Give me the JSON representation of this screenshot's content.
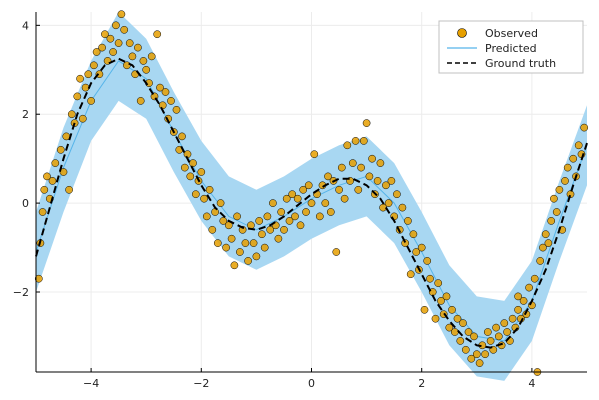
{
  "chart_data": {
    "type": "scatter",
    "title": "",
    "xlabel": "",
    "ylabel": "",
    "xlim": [
      -5,
      5
    ],
    "ylim": [
      -3.8,
      4.3
    ],
    "x_ticks": [
      -4,
      -2,
      0,
      2,
      4
    ],
    "x_tick_labels": [
      "−4",
      "−2",
      "0",
      "2",
      "4"
    ],
    "y_ticks": [
      -2,
      0,
      2,
      4
    ],
    "y_tick_labels": [
      "−2",
      "0",
      "2",
      "4"
    ],
    "grid": true,
    "legend": {
      "placement": "top-right",
      "entries": [
        "Observed",
        "Predicted",
        "Ground truth"
      ]
    },
    "colors": {
      "observed": "#e69f00",
      "observed_stroke": "#000000",
      "predicted": "#56b4e9",
      "band": "#a8d7f2",
      "ground_truth": "#000000",
      "grid": "#ececec",
      "axis": "#000000"
    },
    "series": [
      {
        "name": "Observed",
        "kind": "scatter",
        "points": [
          [
            -4.95,
            -1.7
          ],
          [
            -4.92,
            -0.9
          ],
          [
            -4.88,
            -0.2
          ],
          [
            -4.85,
            0.3
          ],
          [
            -4.8,
            0.6
          ],
          [
            -4.75,
            0.1
          ],
          [
            -4.7,
            0.5
          ],
          [
            -4.65,
            0.9
          ],
          [
            -4.55,
            1.2
          ],
          [
            -4.5,
            0.7
          ],
          [
            -4.45,
            1.5
          ],
          [
            -4.4,
            0.3
          ],
          [
            -4.35,
            2.0
          ],
          [
            -4.3,
            1.8
          ],
          [
            -4.25,
            2.4
          ],
          [
            -4.2,
            2.8
          ],
          [
            -4.15,
            1.9
          ],
          [
            -4.1,
            2.6
          ],
          [
            -4.05,
            2.9
          ],
          [
            -4.0,
            2.3
          ],
          [
            -3.95,
            3.1
          ],
          [
            -3.9,
            3.4
          ],
          [
            -3.85,
            2.9
          ],
          [
            -3.8,
            3.5
          ],
          [
            -3.75,
            3.8
          ],
          [
            -3.7,
            3.2
          ],
          [
            -3.65,
            3.7
          ],
          [
            -3.6,
            3.4
          ],
          [
            -3.55,
            4.0
          ],
          [
            -3.5,
            3.6
          ],
          [
            -3.45,
            4.25
          ],
          [
            -3.4,
            3.9
          ],
          [
            -3.35,
            3.1
          ],
          [
            -3.3,
            3.6
          ],
          [
            -3.25,
            3.3
          ],
          [
            -3.2,
            2.9
          ],
          [
            -3.15,
            3.5
          ],
          [
            -3.1,
            2.3
          ],
          [
            -3.05,
            3.2
          ],
          [
            -3.0,
            3.0
          ],
          [
            -2.95,
            2.7
          ],
          [
            -2.9,
            3.3
          ],
          [
            -2.85,
            2.4
          ],
          [
            -2.8,
            3.8
          ],
          [
            -2.75,
            2.6
          ],
          [
            -2.7,
            2.2
          ],
          [
            -2.65,
            2.5
          ],
          [
            -2.6,
            1.9
          ],
          [
            -2.55,
            2.3
          ],
          [
            -2.5,
            1.6
          ],
          [
            -2.45,
            2.1
          ],
          [
            -2.4,
            1.2
          ],
          [
            -2.35,
            1.5
          ],
          [
            -2.3,
            0.8
          ],
          [
            -2.25,
            1.1
          ],
          [
            -2.2,
            0.6
          ],
          [
            -2.15,
            0.9
          ],
          [
            -2.1,
            0.2
          ],
          [
            -2.05,
            0.5
          ],
          [
            -2.0,
            0.7
          ],
          [
            -1.95,
            0.1
          ],
          [
            -1.9,
            -0.3
          ],
          [
            -1.85,
            0.3
          ],
          [
            -1.8,
            -0.6
          ],
          [
            -1.75,
            -0.2
          ],
          [
            -1.7,
            -0.9
          ],
          [
            -1.65,
            0.0
          ],
          [
            -1.6,
            -0.4
          ],
          [
            -1.55,
            -1.0
          ],
          [
            -1.5,
            -0.5
          ],
          [
            -1.45,
            -0.8
          ],
          [
            -1.4,
            -1.4
          ],
          [
            -1.35,
            -0.3
          ],
          [
            -1.3,
            -1.1
          ],
          [
            -1.25,
            -0.6
          ],
          [
            -1.2,
            -0.9
          ],
          [
            -1.15,
            -1.3
          ],
          [
            -1.1,
            -0.5
          ],
          [
            -1.05,
            -0.9
          ],
          [
            -1.0,
            -1.2
          ],
          [
            -0.95,
            -0.4
          ],
          [
            -0.9,
            -0.7
          ],
          [
            -0.85,
            -1.0
          ],
          [
            -0.8,
            -0.3
          ],
          [
            -0.75,
            -0.6
          ],
          [
            -0.7,
            0.0
          ],
          [
            -0.65,
            -0.5
          ],
          [
            -0.6,
            -0.8
          ],
          [
            -0.55,
            -0.2
          ],
          [
            -0.5,
            -0.6
          ],
          [
            -0.45,
            0.1
          ],
          [
            -0.4,
            -0.4
          ],
          [
            -0.35,
            0.2
          ],
          [
            -0.3,
            -0.3
          ],
          [
            -0.25,
            0.1
          ],
          [
            -0.2,
            -0.5
          ],
          [
            -0.15,
            0.3
          ],
          [
            -0.1,
            -0.2
          ],
          [
            -0.05,
            0.4
          ],
          [
            0.0,
            0.0
          ],
          [
            0.05,
            1.1
          ],
          [
            0.1,
            0.2
          ],
          [
            0.15,
            -0.3
          ],
          [
            0.2,
            0.4
          ],
          [
            0.25,
            0.0
          ],
          [
            0.3,
            0.6
          ],
          [
            0.35,
            -0.2
          ],
          [
            0.4,
            0.5
          ],
          [
            0.45,
            -1.1
          ],
          [
            0.5,
            0.3
          ],
          [
            0.55,
            0.8
          ],
          [
            0.6,
            0.1
          ],
          [
            0.65,
            1.3
          ],
          [
            0.7,
            0.5
          ],
          [
            0.75,
            0.9
          ],
          [
            0.8,
            1.4
          ],
          [
            0.85,
            0.3
          ],
          [
            0.9,
            0.8
          ],
          [
            0.95,
            1.4
          ],
          [
            1.0,
            1.8
          ],
          [
            1.05,
            0.6
          ],
          [
            1.1,
            1.0
          ],
          [
            1.15,
            0.2
          ],
          [
            1.2,
            0.5
          ],
          [
            1.25,
            0.9
          ],
          [
            1.3,
            -0.1
          ],
          [
            1.35,
            0.4
          ],
          [
            1.4,
            0.0
          ],
          [
            1.45,
            0.5
          ],
          [
            1.5,
            -0.3
          ],
          [
            1.55,
            0.2
          ],
          [
            1.6,
            -0.6
          ],
          [
            1.65,
            -0.1
          ],
          [
            1.7,
            -0.9
          ],
          [
            1.75,
            -0.4
          ],
          [
            1.8,
            -1.6
          ],
          [
            1.85,
            -0.7
          ],
          [
            1.9,
            -1.1
          ],
          [
            1.95,
            -1.5
          ],
          [
            2.0,
            -1.0
          ],
          [
            2.05,
            -2.4
          ],
          [
            2.1,
            -1.3
          ],
          [
            2.15,
            -1.7
          ],
          [
            2.2,
            -2.0
          ],
          [
            2.25,
            -2.6
          ],
          [
            2.3,
            -1.8
          ],
          [
            2.35,
            -2.2
          ],
          [
            2.4,
            -2.5
          ],
          [
            2.45,
            -2.1
          ],
          [
            2.5,
            -2.8
          ],
          [
            2.55,
            -2.4
          ],
          [
            2.6,
            -2.9
          ],
          [
            2.65,
            -2.6
          ],
          [
            2.7,
            -3.1
          ],
          [
            2.75,
            -2.7
          ],
          [
            2.8,
            -3.3
          ],
          [
            2.85,
            -2.9
          ],
          [
            2.9,
            -3.5
          ],
          [
            2.95,
            -3.0
          ],
          [
            3.0,
            -3.4
          ],
          [
            3.05,
            -3.6
          ],
          [
            3.1,
            -3.2
          ],
          [
            3.15,
            -3.4
          ],
          [
            3.2,
            -2.9
          ],
          [
            3.25,
            -3.1
          ],
          [
            3.3,
            -3.3
          ],
          [
            3.35,
            -2.8
          ],
          [
            3.4,
            -3.0
          ],
          [
            3.45,
            -3.2
          ],
          [
            3.5,
            -2.7
          ],
          [
            3.55,
            -2.9
          ],
          [
            3.6,
            -3.1
          ],
          [
            3.65,
            -2.6
          ],
          [
            3.7,
            -2.8
          ],
          [
            3.75,
            -2.4
          ],
          [
            3.8,
            -2.6
          ],
          [
            3.85,
            -2.2
          ],
          [
            3.9,
            -2.5
          ],
          [
            3.95,
            -1.9
          ],
          [
            4.0,
            -2.3
          ],
          [
            4.05,
            -1.7
          ],
          [
            4.1,
            -3.8
          ],
          [
            4.15,
            -1.3
          ],
          [
            4.2,
            -1.0
          ],
          [
            4.25,
            -0.7
          ],
          [
            4.3,
            -0.9
          ],
          [
            4.35,
            -0.4
          ],
          [
            4.4,
            0.1
          ],
          [
            4.45,
            -0.2
          ],
          [
            4.5,
            0.3
          ],
          [
            4.55,
            -0.6
          ],
          [
            4.6,
            0.5
          ],
          [
            4.65,
            0.8
          ],
          [
            4.7,
            0.2
          ],
          [
            4.75,
            1.0
          ],
          [
            4.8,
            0.6
          ],
          [
            4.85,
            1.3
          ],
          [
            4.9,
            1.1
          ],
          [
            4.95,
            1.7
          ],
          [
            3.75,
            -2.1
          ]
        ]
      },
      {
        "name": "Predicted",
        "kind": "band",
        "x": [
          -5.0,
          -4.5,
          -4.0,
          -3.5,
          -3.0,
          -2.5,
          -2.0,
          -1.5,
          -1.0,
          -0.5,
          0.0,
          0.5,
          1.0,
          1.5,
          2.0,
          2.5,
          3.0,
          3.5,
          4.0,
          4.5,
          5.0
        ],
        "mean": [
          -1.1,
          0.8,
          2.3,
          3.2,
          2.8,
          1.6,
          0.5,
          -0.3,
          -0.6,
          -0.3,
          0.1,
          0.4,
          0.6,
          0.0,
          -1.1,
          -2.3,
          -3.0,
          -3.1,
          -2.2,
          -0.4,
          1.3
        ],
        "lower": [
          -2.0,
          -0.2,
          1.4,
          2.3,
          1.9,
          0.7,
          -0.4,
          -1.2,
          -1.5,
          -1.2,
          -0.8,
          -0.5,
          -0.3,
          -0.9,
          -2.0,
          -3.2,
          -3.9,
          -4.0,
          -3.1,
          -1.3,
          0.4
        ],
        "upper": [
          -0.2,
          1.7,
          3.2,
          4.3,
          3.7,
          2.5,
          1.4,
          0.6,
          0.3,
          0.6,
          1.0,
          1.3,
          1.5,
          0.9,
          -0.2,
          -1.4,
          -2.1,
          -2.2,
          -1.3,
          0.5,
          2.2
        ]
      },
      {
        "name": "Ground truth",
        "kind": "line",
        "x": [
          -5.0,
          -4.75,
          -4.5,
          -4.25,
          -4.0,
          -3.75,
          -3.5,
          -3.25,
          -3.0,
          -2.75,
          -2.5,
          -2.25,
          -2.0,
          -1.75,
          -1.5,
          -1.25,
          -1.0,
          -0.75,
          -0.5,
          -0.25,
          0.0,
          0.25,
          0.5,
          0.75,
          1.0,
          1.25,
          1.5,
          1.75,
          2.0,
          2.25,
          2.5,
          2.75,
          3.0,
          3.25,
          3.5,
          3.75,
          4.0,
          4.25,
          4.5,
          4.75,
          5.0
        ],
        "y": [
          -1.2,
          -0.1,
          1.0,
          2.0,
          2.7,
          3.1,
          3.25,
          3.1,
          2.7,
          2.2,
          1.6,
          1.0,
          0.4,
          -0.1,
          -0.4,
          -0.55,
          -0.6,
          -0.5,
          -0.3,
          -0.05,
          0.2,
          0.4,
          0.55,
          0.55,
          0.4,
          0.1,
          -0.4,
          -1.0,
          -1.6,
          -2.2,
          -2.65,
          -3.0,
          -3.2,
          -3.25,
          -3.15,
          -2.8,
          -2.2,
          -1.5,
          -0.6,
          0.4,
          1.35
        ]
      }
    ]
  }
}
